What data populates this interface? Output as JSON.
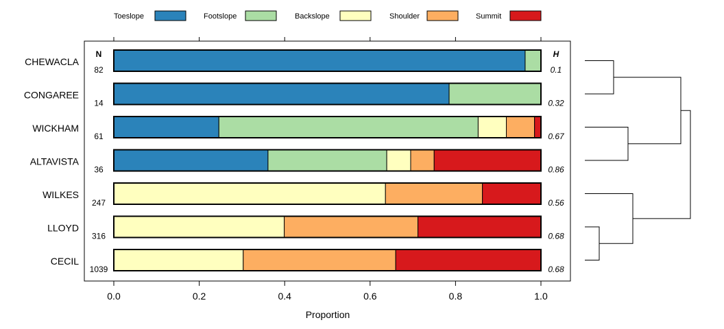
{
  "chart_data": {
    "type": "bar",
    "orientation": "horizontal",
    "stacked": true,
    "xlabel": "Proportion",
    "xlim": [
      0,
      1
    ],
    "xticks": [
      "0.0",
      "0.2",
      "0.4",
      "0.6",
      "0.8",
      "1.0"
    ],
    "xtick_values": [
      0,
      0.2,
      0.4,
      0.6,
      0.8,
      1.0
    ],
    "top_tick_values": [
      0,
      0.2,
      0.4,
      0.6,
      0.8,
      1.0
    ],
    "legend_placement": "top",
    "n_header": "N",
    "h_header": "H",
    "categories": [
      "CHEWACLA",
      "CONGAREE",
      "WICKHAM",
      "ALTAVISTA",
      "WILKES",
      "LLOYD",
      "CECIL"
    ],
    "n": [
      "82",
      "14",
      "61",
      "36",
      "247",
      "316",
      "1039"
    ],
    "h": [
      "0.1",
      "0.32",
      "0.67",
      "0.86",
      "0.56",
      "0.68",
      "0.68"
    ],
    "series": [
      {
        "name": "Toeslope",
        "color": "#2b83ba",
        "values": [
          0.963,
          0.785,
          0.246,
          0.361,
          0,
          0,
          0
        ]
      },
      {
        "name": "Footslope",
        "color": "#abdda4",
        "values": [
          0.037,
          0.215,
          0.607,
          0.278,
          0,
          0,
          0
        ]
      },
      {
        "name": "Backslope",
        "color": "#ffffbf",
        "values": [
          0,
          0,
          0.066,
          0.056,
          0.636,
          0.399,
          0.303
        ]
      },
      {
        "name": "Shoulder",
        "color": "#fdae61",
        "values": [
          0,
          0,
          0.066,
          0.055,
          0.227,
          0.313,
          0.357
        ]
      },
      {
        "name": "Summit",
        "color": "#d7191c",
        "values": [
          0,
          0,
          0.015,
          0.25,
          0.137,
          0.288,
          0.34
        ]
      }
    ],
    "dendrogram": {
      "merges": [
        {
          "left": 0,
          "right": 1,
          "height": 0.3
        },
        {
          "left": 5,
          "right": 6,
          "height": 0.15
        },
        {
          "left": 2,
          "right": 3,
          "height": 0.45
        },
        {
          "left": 4,
          "right": "m1",
          "height": 0.5
        },
        {
          "left": "m0",
          "right": "m2",
          "height": 1.0
        },
        {
          "left": "m4",
          "right": "m3",
          "height": 1.1
        }
      ]
    }
  }
}
